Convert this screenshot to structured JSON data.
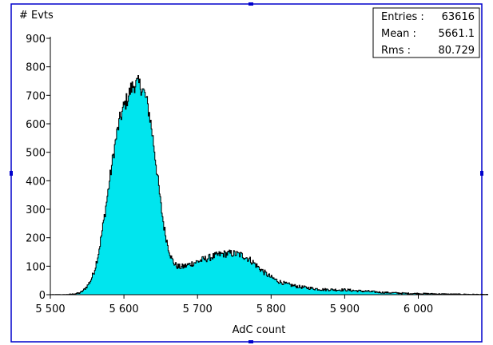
{
  "chart_data": {
    "type": "histogram",
    "ylabel": "# Evts",
    "xlabel": "AdC count",
    "xlim": [
      5500,
      6095
    ],
    "ylim": [
      0,
      900
    ],
    "x_ticks": [
      {
        "value": 5500,
        "label": "5 500"
      },
      {
        "value": 5600,
        "label": "5 600"
      },
      {
        "value": 5700,
        "label": "5 700"
      },
      {
        "value": 5800,
        "label": "5 800"
      },
      {
        "value": 5900,
        "label": "5 900"
      },
      {
        "value": 6000,
        "label": "6 000"
      }
    ],
    "y_ticks": [
      {
        "value": 0,
        "label": "0"
      },
      {
        "value": 100,
        "label": "100"
      },
      {
        "value": 200,
        "label": "200"
      },
      {
        "value": 300,
        "label": "300"
      },
      {
        "value": 400,
        "label": "400"
      },
      {
        "value": 500,
        "label": "500"
      },
      {
        "value": 600,
        "label": "600"
      },
      {
        "value": 700,
        "label": "700"
      },
      {
        "value": 800,
        "label": "800"
      },
      {
        "value": 900,
        "label": "900"
      }
    ],
    "stats": {
      "entries_label": "Entries :",
      "entries": "63616",
      "mean_label": "Mean :",
      "mean": "5661.1",
      "rms_label": "Rms :",
      "rms": "80.729"
    },
    "fill_color": "#00e5ee",
    "outline_color": "#000000",
    "frame_color": "#0000cc",
    "envelope": [
      [
        5500,
        0
      ],
      [
        5520,
        0.3
      ],
      [
        5530,
        2
      ],
      [
        5540,
        6
      ],
      [
        5545,
        15
      ],
      [
        5550,
        30
      ],
      [
        5555,
        50
      ],
      [
        5560,
        85
      ],
      [
        5565,
        140
      ],
      [
        5570,
        215
      ],
      [
        5575,
        300
      ],
      [
        5580,
        390
      ],
      [
        5585,
        480
      ],
      [
        5590,
        560
      ],
      [
        5595,
        620
      ],
      [
        5600,
        660
      ],
      [
        5605,
        690
      ],
      [
        5610,
        725
      ],
      [
        5615,
        740
      ],
      [
        5620,
        740
      ],
      [
        5625,
        725
      ],
      [
        5630,
        690
      ],
      [
        5635,
        630
      ],
      [
        5640,
        540
      ],
      [
        5645,
        430
      ],
      [
        5650,
        320
      ],
      [
        5655,
        230
      ],
      [
        5660,
        170
      ],
      [
        5665,
        125
      ],
      [
        5670,
        104
      ],
      [
        5675,
        97
      ],
      [
        5680,
        98
      ],
      [
        5685,
        102
      ],
      [
        5690,
        107
      ],
      [
        5695,
        112
      ],
      [
        5700,
        116
      ],
      [
        5705,
        121
      ],
      [
        5710,
        125
      ],
      [
        5715,
        129
      ],
      [
        5720,
        133
      ],
      [
        5725,
        137
      ],
      [
        5730,
        141
      ],
      [
        5735,
        143
      ],
      [
        5740,
        144
      ],
      [
        5745,
        145
      ],
      [
        5750,
        144
      ],
      [
        5755,
        142
      ],
      [
        5760,
        139
      ],
      [
        5765,
        133
      ],
      [
        5770,
        125
      ],
      [
        5775,
        115
      ],
      [
        5780,
        103
      ],
      [
        5785,
        91
      ],
      [
        5790,
        80
      ],
      [
        5795,
        70
      ],
      [
        5800,
        61
      ],
      [
        5810,
        47
      ],
      [
        5820,
        38
      ],
      [
        5830,
        32
      ],
      [
        5840,
        27
      ],
      [
        5850,
        24
      ],
      [
        5860,
        21
      ],
      [
        5870,
        18
      ],
      [
        5880,
        18
      ],
      [
        5890,
        17
      ],
      [
        5900,
        17
      ],
      [
        5910,
        15
      ],
      [
        5920,
        13
      ],
      [
        5930,
        12
      ],
      [
        5940,
        10
      ],
      [
        5950,
        8
      ],
      [
        5960,
        7
      ],
      [
        5970,
        6
      ],
      [
        5980,
        5
      ],
      [
        5990,
        4
      ],
      [
        6000,
        4
      ],
      [
        6020,
        3
      ],
      [
        6040,
        2
      ],
      [
        6060,
        1.5
      ],
      [
        6080,
        1
      ],
      [
        6095,
        0.5
      ]
    ]
  }
}
